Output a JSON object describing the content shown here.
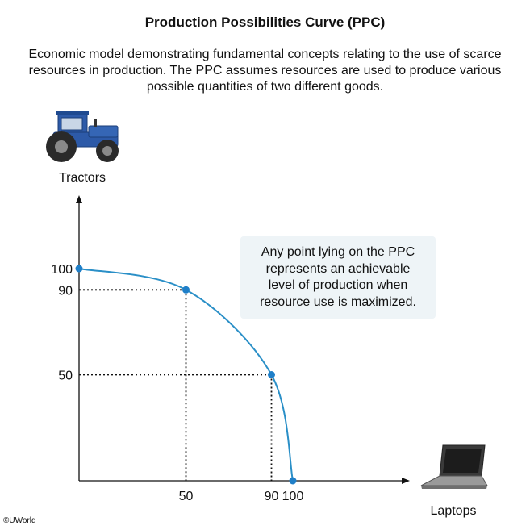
{
  "header": {
    "title": "Production Possibilities Curve (PPC)",
    "subtitle": "Economic model demonstrating fundamental concepts relating to the use of scarce resources in production. The PPC assumes resources are used to produce various possible quantities of two different goods."
  },
  "callout": {
    "lines": [
      "Any point lying on the PPC",
      "represents an achievable",
      "level of production when",
      "resource use is maximized."
    ]
  },
  "footer": {
    "copyright": "©UWorld"
  },
  "icons": {
    "y_axis": "tractor-icon",
    "x_axis": "laptop-icon"
  },
  "colors": {
    "curve": "#2a8fc7",
    "point": "#1f7fc8",
    "tractor_body": "#2d5aa8",
    "axis": "#111111"
  },
  "chart_data": {
    "type": "line",
    "title": "Production Possibilities Curve (PPC)",
    "xlabel": "Laptops",
    "ylabel": "Tractors",
    "xlim": [
      0,
      150
    ],
    "ylim": [
      0,
      140
    ],
    "x_ticks": [
      50,
      90,
      100
    ],
    "y_ticks": [
      50,
      90,
      100
    ],
    "grid": false,
    "series": [
      {
        "points": [
          {
            "x": 0,
            "y": 100
          },
          {
            "x": 50,
            "y": 90
          },
          {
            "x": 90,
            "y": 50
          },
          {
            "x": 100,
            "y": 0
          }
        ]
      }
    ],
    "guides": [
      {
        "x": 50,
        "y": 90
      },
      {
        "x": 90,
        "y": 50
      }
    ]
  }
}
